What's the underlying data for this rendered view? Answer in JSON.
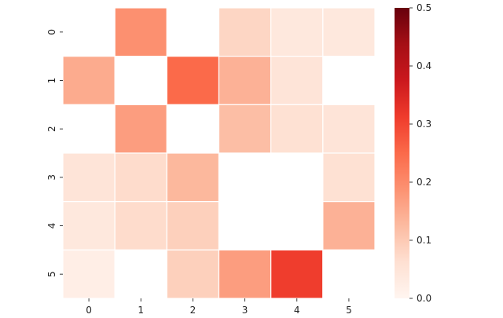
{
  "chart_data": {
    "type": "heatmap",
    "title": "",
    "xlabel": "",
    "ylabel": "",
    "x_categories": [
      "0",
      "1",
      "2",
      "3",
      "4",
      "5"
    ],
    "y_categories": [
      "0",
      "1",
      "2",
      "3",
      "4",
      "5"
    ],
    "values": [
      [
        null,
        0.19,
        null,
        0.08,
        0.04,
        0.04
      ],
      [
        0.15,
        null,
        0.25,
        0.14,
        0.05,
        null
      ],
      [
        null,
        0.17,
        null,
        0.12,
        0.06,
        0.05
      ],
      [
        0.05,
        0.07,
        0.13,
        null,
        null,
        0.06
      ],
      [
        0.04,
        0.07,
        0.09,
        null,
        null,
        0.14
      ],
      [
        0.02,
        null,
        0.09,
        0.17,
        0.31,
        null
      ]
    ],
    "colormap": "Reds",
    "vmin": 0.0,
    "vmax": 0.5,
    "colorbar_ticks": [
      "0.0",
      "0.1",
      "0.2",
      "0.3",
      "0.4",
      "0.5"
    ],
    "colorbar_tick_values": [
      0.0,
      0.1,
      0.2,
      0.3,
      0.4,
      0.5
    ],
    "missing_color": "#ffffff",
    "grid_line_color": "#ffffff"
  }
}
